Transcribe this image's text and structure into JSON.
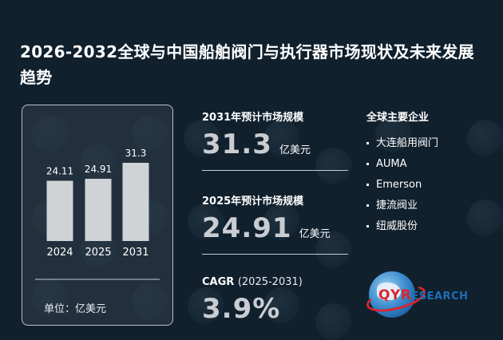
{
  "title": "2026-2032全球与中国船舶阀门与执行器市场现状及未来发展趋势",
  "chart_data": {
    "type": "bar",
    "categories": [
      "2024",
      "2025",
      "2031"
    ],
    "values": [
      24.11,
      24.91,
      31.3
    ],
    "value_labels": [
      "24.11",
      "24.91",
      "31.3"
    ],
    "unit_label": "单位：亿美元",
    "bar_color": "#d0d3d6"
  },
  "stats": {
    "s2031": {
      "label": "2031年预计市场规模",
      "value": "31.3",
      "unit": "亿美元"
    },
    "s2025": {
      "label": "2025年预计市场规模",
      "value": "24.91",
      "unit": "亿美元"
    },
    "cagr": {
      "label": "CAGR",
      "period": "(2025-2031)",
      "value": "3.9%"
    }
  },
  "companies": {
    "title": "全球主要企业",
    "items": [
      "大连船用阀门",
      "AUMA",
      "Emerson",
      "捷流阀业",
      "纽威股份"
    ]
  },
  "logo": {
    "q": "Q",
    "yr": "YR",
    "rest": "ESEARCH"
  }
}
